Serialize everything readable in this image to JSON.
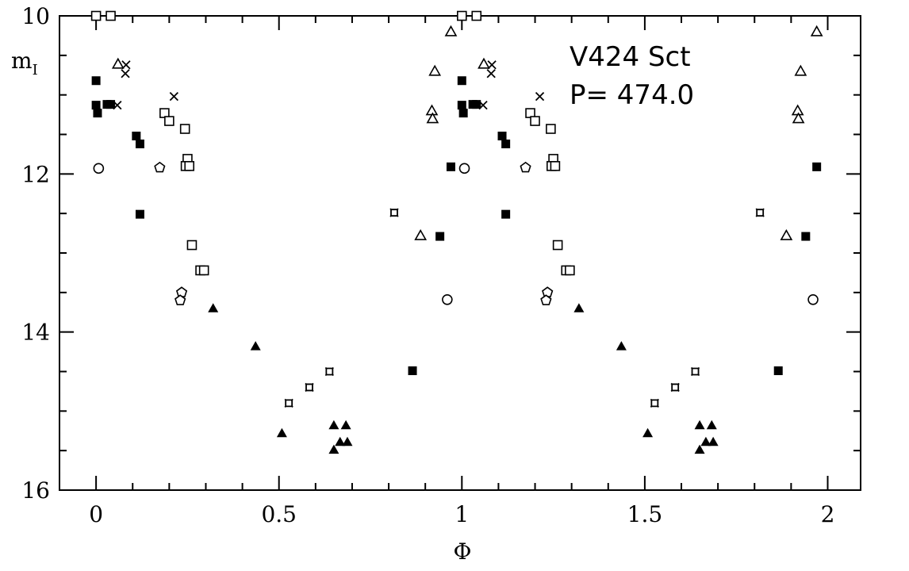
{
  "chart_data": {
    "type": "scatter",
    "title": "",
    "xlabel": "Φ",
    "ylabel": "m",
    "ylabel_sub": "I",
    "xlim": [
      -0.1,
      2.09
    ],
    "ylim": [
      10,
      16
    ],
    "y_inverted": true,
    "grid": false,
    "x_ticks": [
      "0",
      "0.5",
      "1",
      "1.5",
      "2"
    ],
    "x_tick_values": [
      0,
      0.5,
      1,
      1.5,
      2
    ],
    "y_ticks": [
      "10",
      "12",
      "14",
      "16"
    ],
    "y_tick_values": [
      10,
      12,
      14,
      16
    ],
    "annotations": [
      "V424 Sct",
      "P= 474.0"
    ],
    "phase_repeated": true,
    "series": [
      {
        "marker": "filled-square",
        "points": [
          [
            0,
            10.82
          ],
          [
            0,
            11.13
          ],
          [
            0.004,
            11.23
          ],
          [
            0.03,
            11.12
          ],
          [
            0.04,
            11.12
          ],
          [
            0.11,
            11.52
          ],
          [
            0.12,
            11.62
          ],
          [
            0.12,
            12.51
          ],
          [
            0.865,
            14.49
          ],
          [
            0.94,
            12.79
          ],
          [
            0.97,
            11.91
          ]
        ]
      },
      {
        "marker": "filled-triangle",
        "points": [
          [
            0.32,
            13.7
          ],
          [
            0.436,
            14.18
          ],
          [
            0.508,
            15.28
          ],
          [
            0.65,
            15.18
          ],
          [
            0.683,
            15.18
          ],
          [
            0.667,
            15.39
          ],
          [
            0.687,
            15.39
          ],
          [
            0.65,
            15.49
          ]
        ]
      },
      {
        "marker": "crossed-square",
        "points": [
          [
            0.527,
            14.9
          ],
          [
            0.583,
            14.7
          ],
          [
            0.638,
            14.5
          ],
          [
            0.815,
            12.49
          ]
        ]
      },
      {
        "marker": "open-square",
        "points": [
          [
            0.0,
            10.0
          ],
          [
            0.04,
            10.0
          ],
          [
            0.187,
            11.23
          ],
          [
            0.2,
            11.33
          ],
          [
            0.243,
            11.43
          ],
          [
            0.25,
            11.81
          ],
          [
            0.245,
            11.9
          ],
          [
            0.255,
            11.9
          ],
          [
            0.262,
            12.9
          ],
          [
            0.285,
            13.22
          ],
          [
            0.295,
            13.22
          ]
        ]
      },
      {
        "marker": "open-pentagon",
        "points": [
          [
            0.174,
            11.92
          ],
          [
            0.234,
            13.5
          ],
          [
            0.23,
            13.6
          ]
        ]
      },
      {
        "marker": "open-circle",
        "points": [
          [
            0.007,
            11.93
          ],
          [
            0.96,
            13.59
          ]
        ]
      },
      {
        "marker": "open-triangle",
        "points": [
          [
            0.06,
            10.61
          ],
          [
            0.887,
            12.78
          ],
          [
            0.918,
            11.2
          ],
          [
            0.92,
            11.3
          ],
          [
            0.926,
            10.7
          ],
          [
            0.97,
            10.2
          ]
        ]
      },
      {
        "marker": "cross",
        "points": [
          [
            0.082,
            10.62
          ],
          [
            0.08,
            10.73
          ],
          [
            0.058,
            11.13
          ],
          [
            0.213,
            11.02
          ]
        ]
      }
    ]
  }
}
